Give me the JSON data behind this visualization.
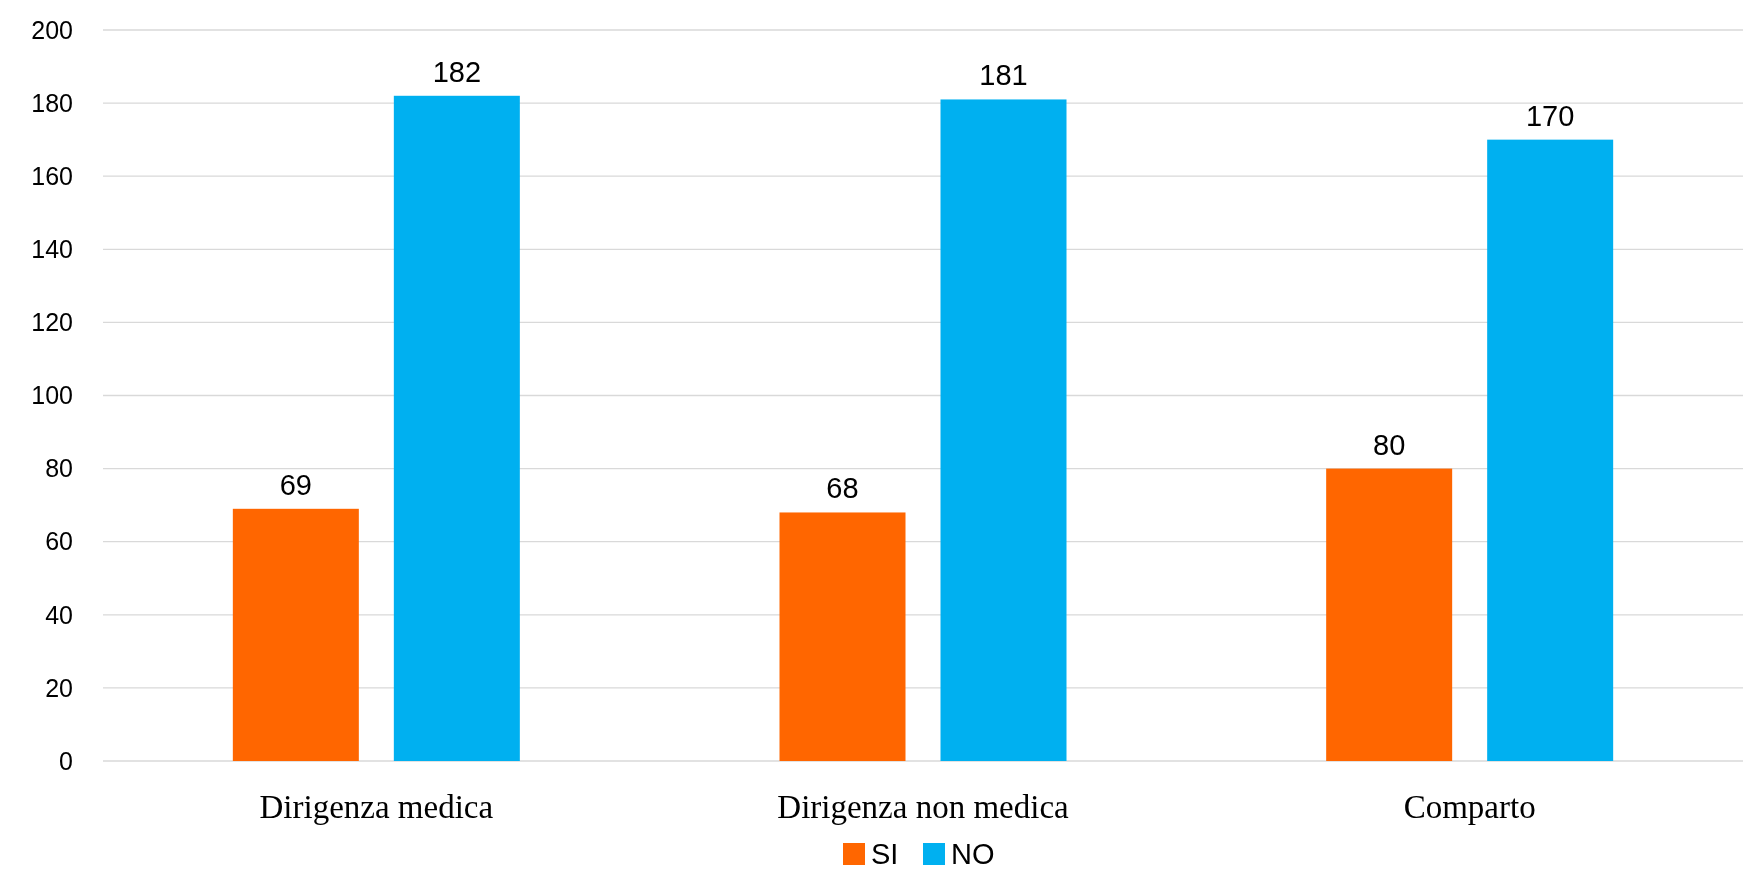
{
  "chart_data": {
    "type": "bar",
    "categories": [
      "Dirigenza medica",
      "Dirigenza non medica",
      "Comparto"
    ],
    "series": [
      {
        "name": "SI",
        "color": "#ff6600",
        "values": [
          69,
          68,
          80
        ]
      },
      {
        "name": "NO",
        "color": "#00b0f0",
        "values": [
          182,
          181,
          170
        ]
      }
    ],
    "ylim": [
      0,
      200
    ],
    "yticks": [
      0,
      20,
      40,
      60,
      80,
      100,
      120,
      140,
      160,
      180,
      200
    ],
    "grid": "y",
    "legend": "bottom",
    "data_labels": true
  }
}
